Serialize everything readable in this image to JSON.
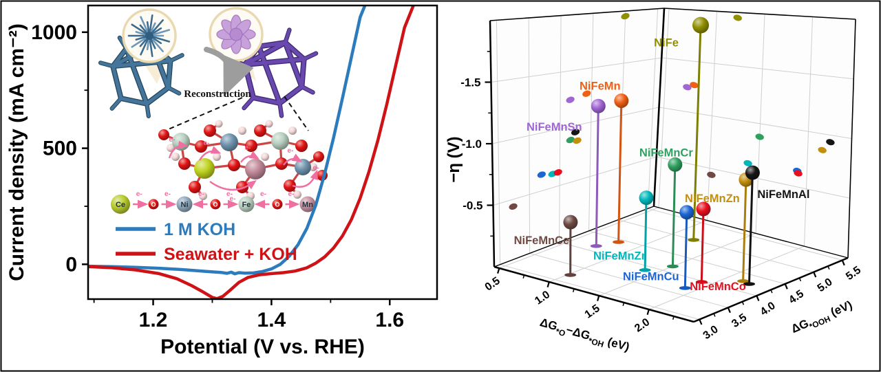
{
  "figure": {
    "background": "#ffffff",
    "border_color": "#000000"
  },
  "left_panel": {
    "xlabel": "Potential (V vs. RHE)",
    "ylabel": "Current density (mA cm⁻²)",
    "x_ticks": [
      1.2,
      1.4,
      1.6
    ],
    "x_tick_labels": [
      "1.2",
      "1.4",
      "1.6"
    ],
    "y_ticks": [
      0,
      500,
      1000
    ],
    "y_tick_labels": [
      "0",
      "500",
      "1000"
    ],
    "legend": [
      {
        "label": "1 M KOH",
        "color": "#2b7bbd"
      },
      {
        "label": "Seawater + KOH",
        "color": "#cf1216"
      }
    ],
    "inset": {
      "reconstruction_label": "Reconstruction",
      "electron_label": "e-",
      "chain": {
        "nodes": [
          {
            "label": "Ce",
            "color": "#b9cc2e"
          },
          {
            "label": "O",
            "color": "#e01414"
          },
          {
            "label": "Ni",
            "color": "#8fa8bc"
          },
          {
            "label": "O",
            "color": "#e01414"
          },
          {
            "label": "Fe",
            "color": "#b9cfc0"
          },
          {
            "label": "O",
            "color": "#e01414"
          },
          {
            "label": "Mn",
            "color": "#c58fa0"
          }
        ],
        "arrow_directions": [
          "right",
          "right",
          "left",
          "right",
          "left",
          "right"
        ]
      }
    }
  },
  "right_panel": {
    "zlabel": "−η (V)",
    "z_ticks": [
      -1.5,
      -1.0,
      -0.5
    ],
    "z_tick_labels": [
      "-1.5",
      "-1.0",
      "-0.5"
    ],
    "x_tick_labels": [
      "0.5",
      "1.0",
      "1.5",
      "2.0"
    ],
    "y_tick_labels": [
      "3.0",
      "3.5",
      "4.0",
      "4.5",
      "5.0",
      "5.5"
    ]
  },
  "chart_data": [
    {
      "type": "line",
      "title": "",
      "xlabel": "Potential (V vs. RHE)",
      "ylabel": "Current density (mA cm⁻²)",
      "xlim": [
        1.09,
        1.68
      ],
      "ylim": [
        -150,
        1115
      ],
      "x_ticks": [
        1.2,
        1.4,
        1.6
      ],
      "y_ticks": [
        0,
        500,
        1000
      ],
      "grid": false,
      "legend_position": "lower-left",
      "series": [
        {
          "name": "1 M KOH",
          "color": "#2b7bbd",
          "points": [
            [
              1.09,
              -8
            ],
            [
              1.13,
              -10
            ],
            [
              1.17,
              -13
            ],
            [
              1.21,
              -17
            ],
            [
              1.25,
              -23
            ],
            [
              1.29,
              -31
            ],
            [
              1.315,
              -35
            ],
            [
              1.325,
              -39
            ],
            [
              1.332,
              -34
            ],
            [
              1.338,
              -41
            ],
            [
              1.345,
              -36
            ],
            [
              1.355,
              -38
            ],
            [
              1.37,
              -37
            ],
            [
              1.385,
              -31
            ],
            [
              1.4,
              -20
            ],
            [
              1.415,
              0
            ],
            [
              1.43,
              35
            ],
            [
              1.445,
              85
            ],
            [
              1.46,
              155
            ],
            [
              1.475,
              255
            ],
            [
              1.49,
              390
            ],
            [
              1.505,
              545
            ],
            [
              1.52,
              715
            ],
            [
              1.535,
              890
            ],
            [
              1.55,
              1065
            ],
            [
              1.558,
              1115
            ]
          ]
        },
        {
          "name": "Seawater + KOH",
          "color": "#cf1216",
          "points": [
            [
              1.09,
              -10
            ],
            [
              1.13,
              -15
            ],
            [
              1.17,
              -24
            ],
            [
              1.21,
              -40
            ],
            [
              1.24,
              -62
            ],
            [
              1.265,
              -92
            ],
            [
              1.285,
              -120
            ],
            [
              1.3,
              -143
            ],
            [
              1.308,
              -148
            ],
            [
              1.318,
              -138
            ],
            [
              1.33,
              -112
            ],
            [
              1.345,
              -78
            ],
            [
              1.36,
              -57
            ],
            [
              1.38,
              -45
            ],
            [
              1.4,
              -40
            ],
            [
              1.42,
              -36
            ],
            [
              1.44,
              -29
            ],
            [
              1.46,
              -15
            ],
            [
              1.475,
              5
            ],
            [
              1.49,
              32
            ],
            [
              1.505,
              70
            ],
            [
              1.52,
              122
            ],
            [
              1.535,
              192
            ],
            [
              1.55,
              285
            ],
            [
              1.565,
              400
            ],
            [
              1.58,
              535
            ],
            [
              1.595,
              690
            ],
            [
              1.61,
              855
            ],
            [
              1.625,
              1020
            ],
            [
              1.64,
              1115
            ]
          ]
        }
      ]
    },
    {
      "type": "scatter",
      "subtype": "scatter3d",
      "xlabel": "ΔG*O−ΔG*OH (eV)",
      "ylabel": "ΔG*OOH (eV)",
      "zlabel": "−η (V)",
      "xlabel_parts": [
        {
          "t": "ΔG"
        },
        {
          "t": "*O",
          "sub": true
        },
        {
          "t": "−ΔG"
        },
        {
          "t": "*OH",
          "sub": true
        },
        {
          "t": " (eV)"
        }
      ],
      "ylabel_parts": [
        {
          "t": "ΔG"
        },
        {
          "t": "*OOH",
          "sub": true
        },
        {
          "t": " (eV)"
        }
      ],
      "xlim": [
        0.45,
        2.45
      ],
      "ylim": [
        2.9,
        5.6
      ],
      "zlim": [
        0,
        -2
      ],
      "x_ticks": [
        0.5,
        1.0,
        1.5,
        2.0
      ],
      "y_ticks": [
        3.0,
        3.5,
        4.0,
        4.5,
        5.0,
        5.5
      ],
      "z_ticks": [
        -1.5,
        -1.0,
        -0.5
      ],
      "points": [
        {
          "name": "NiFe",
          "x": 1.22,
          "y": 5.0,
          "z": -1.95,
          "color": "#8f8f00"
        },
        {
          "name": "NiFeMn",
          "x": 0.8,
          "y": 4.42,
          "z": -1.27,
          "color": "#f05f14"
        },
        {
          "name": "NiFeMnSn",
          "x": 0.73,
          "y": 4.16,
          "z": -1.24,
          "color": "#a066d4"
        },
        {
          "name": "NiFeMnCr",
          "x": 1.5,
          "y": 4.17,
          "z": -0.88,
          "color": "#2fa05f"
        },
        {
          "name": "NiFeMnZr",
          "x": 1.39,
          "y": 3.88,
          "z": -0.62,
          "color": "#00b8bc"
        },
        {
          "name": "NiFeMnCu",
          "x": 1.9,
          "y": 3.7,
          "z": -0.64,
          "color": "#1c66d4"
        },
        {
          "name": "NiFeMnCo",
          "x": 1.91,
          "y": 3.97,
          "z": -0.62,
          "color": "#e8101f"
        },
        {
          "name": "NiFeMnZn",
          "x": 2.15,
          "y": 4.28,
          "z": -0.86,
          "color": "#c28f0e"
        },
        {
          "name": "NiFeMnAl",
          "x": 2.23,
          "y": 4.25,
          "z": -0.94,
          "color": "#151515"
        },
        {
          "name": "NiFeMnCe",
          "x": 1.02,
          "y": 3.23,
          "z": -0.44,
          "color": "#6f4a44"
        }
      ]
    }
  ]
}
